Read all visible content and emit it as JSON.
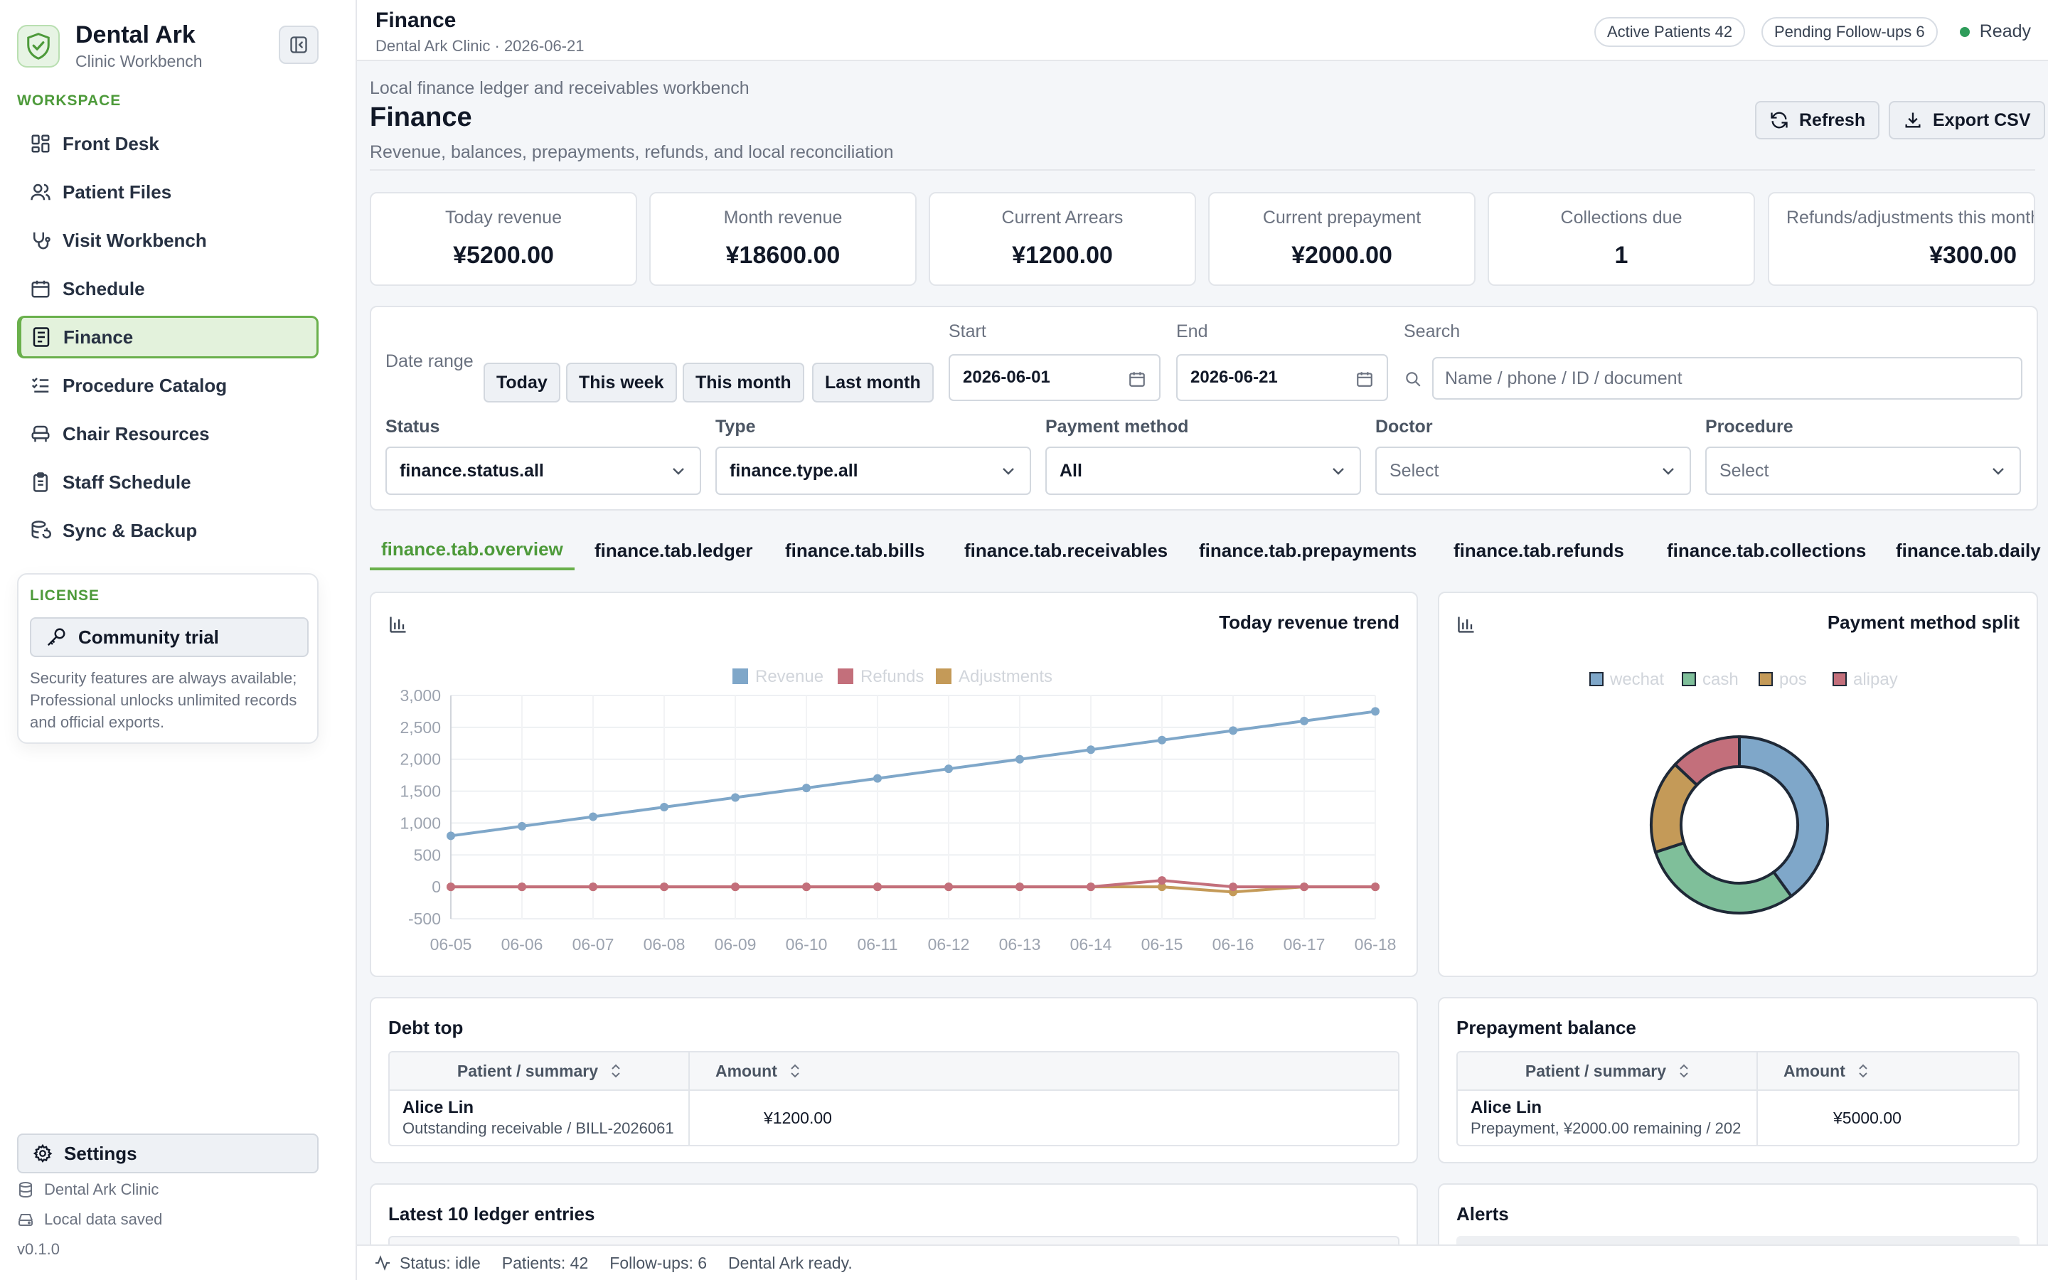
{
  "app": {
    "name": "Dental Ark",
    "subtitle": "Clinic Workbench"
  },
  "sidebar": {
    "section_label": "WORKSPACE",
    "items": [
      {
        "label": "Front Desk",
        "icon": "dashboard-icon"
      },
      {
        "label": "Patient Files",
        "icon": "users-icon"
      },
      {
        "label": "Visit Workbench",
        "icon": "stethoscope-icon"
      },
      {
        "label": "Schedule",
        "icon": "calendar-icon"
      },
      {
        "label": "Finance",
        "icon": "receipt-icon",
        "active": true
      },
      {
        "label": "Procedure Catalog",
        "icon": "checklist-icon"
      },
      {
        "label": "Chair Resources",
        "icon": "chair-icon"
      },
      {
        "label": "Staff Schedule",
        "icon": "clipboard-icon"
      },
      {
        "label": "Sync & Backup",
        "icon": "database-sync-icon"
      }
    ],
    "license": {
      "label": "LICENSE",
      "button": "Community trial",
      "description": "Security features are always available; Professional unlocks unlimited records and official exports."
    },
    "settings_label": "Settings",
    "clinic_name": "Dental Ark Clinic",
    "data_status": "Local data saved",
    "version": "v0.1.0"
  },
  "topbar": {
    "title": "Finance",
    "subtitle": "Dental Ark Clinic · 2026-06-21",
    "active_patients": "Active Patients 42",
    "pending_followups": "Pending Follow-ups 6",
    "status": "Ready"
  },
  "page": {
    "kicker": "Local finance ledger and receivables workbench",
    "title": "Finance",
    "description": "Revenue, balances, prepayments, refunds, and local reconciliation",
    "refresh_label": "Refresh",
    "export_label": "Export CSV"
  },
  "stats": [
    {
      "label": "Today revenue",
      "value": "¥5200.00"
    },
    {
      "label": "Month revenue",
      "value": "¥18600.00"
    },
    {
      "label": "Current Arrears",
      "value": "¥1200.00"
    },
    {
      "label": "Current prepayment",
      "value": "¥2000.00"
    },
    {
      "label": "Collections due",
      "value": "1"
    },
    {
      "label": "Refunds/adjustments this month",
      "value": "¥300.00"
    }
  ],
  "filters": {
    "date_range_label": "Date range",
    "ranges": [
      "Today",
      "This week",
      "This month",
      "Last month"
    ],
    "start_label": "Start",
    "start_value": "2026-06-01",
    "end_label": "End",
    "end_value": "2026-06-21",
    "search_label": "Search",
    "search_placeholder": "Name / phone / ID / document",
    "status_label": "Status",
    "status_value": "finance.status.all",
    "type_label": "Type",
    "type_value": "finance.type.all",
    "payment_label": "Payment method",
    "payment_value": "All",
    "doctor_label": "Doctor",
    "doctor_value": "Select",
    "procedure_label": "Procedure",
    "procedure_value": "Select"
  },
  "tabs": [
    "finance.tab.overview",
    "finance.tab.ledger",
    "finance.tab.bills",
    "finance.tab.receivables",
    "finance.tab.prepayments",
    "finance.tab.refunds",
    "finance.tab.collections",
    "finance.tab.daily"
  ],
  "colors": {
    "accent": "#6ab04c",
    "revenue": "#7fa7c9",
    "refunds": "#c36f7b",
    "adjustments": "#c49a58",
    "wechat": "#7fa7c9",
    "cash": "#7fbf9a",
    "pos": "#c49a58",
    "alipay": "#c36f7b"
  },
  "chart_data": [
    {
      "type": "line",
      "title": "Today revenue trend",
      "x": [
        "06-05",
        "06-06",
        "06-07",
        "06-08",
        "06-09",
        "06-10",
        "06-11",
        "06-12",
        "06-13",
        "06-14",
        "06-15",
        "06-16",
        "06-17",
        "06-18"
      ],
      "series": [
        {
          "name": "Revenue",
          "values": [
            800,
            950,
            1100,
            1250,
            1400,
            1550,
            1700,
            1850,
            2000,
            2150,
            2300,
            2450,
            2600,
            2750
          ]
        },
        {
          "name": "Refunds",
          "values": [
            0,
            0,
            0,
            0,
            0,
            0,
            0,
            0,
            0,
            0,
            100,
            0,
            0,
            0
          ]
        },
        {
          "name": "Adjustments",
          "values": [
            0,
            0,
            0,
            0,
            0,
            0,
            0,
            0,
            0,
            0,
            0,
            -80,
            0,
            0
          ]
        }
      ],
      "yticks": [
        "3,000",
        "2,500",
        "2,000",
        "1,500",
        "1,000",
        "500",
        "0",
        "-500"
      ],
      "ylim": [
        -500,
        3000
      ],
      "legend": "top",
      "grid": true
    },
    {
      "type": "pie",
      "title": "Payment method split",
      "categories": [
        "wechat",
        "cash",
        "pos",
        "alipay"
      ],
      "values": [
        40,
        30,
        17,
        13
      ],
      "legend": "top"
    }
  ],
  "debt_top": {
    "title": "Debt top",
    "col_patient": "Patient / summary",
    "col_amount": "Amount",
    "rows": [
      {
        "name": "Alice Lin",
        "summary": "Outstanding receivable / BILL-2026061",
        "amount": "¥1200.00"
      }
    ]
  },
  "prepayment": {
    "title": "Prepayment balance",
    "col_patient": "Patient / summary",
    "col_amount": "Amount",
    "rows": [
      {
        "name": "Alice Lin",
        "summary": "Prepayment, ¥2000.00 remaining / 202",
        "amount": "¥5000.00"
      }
    ]
  },
  "ledger_title": "Latest 10 ledger entries",
  "alerts_title": "Alerts",
  "statusbar": {
    "status": "Status: idle",
    "patients": "Patients: 42",
    "followups": "Follow-ups: 6",
    "message": "Dental Ark ready."
  }
}
